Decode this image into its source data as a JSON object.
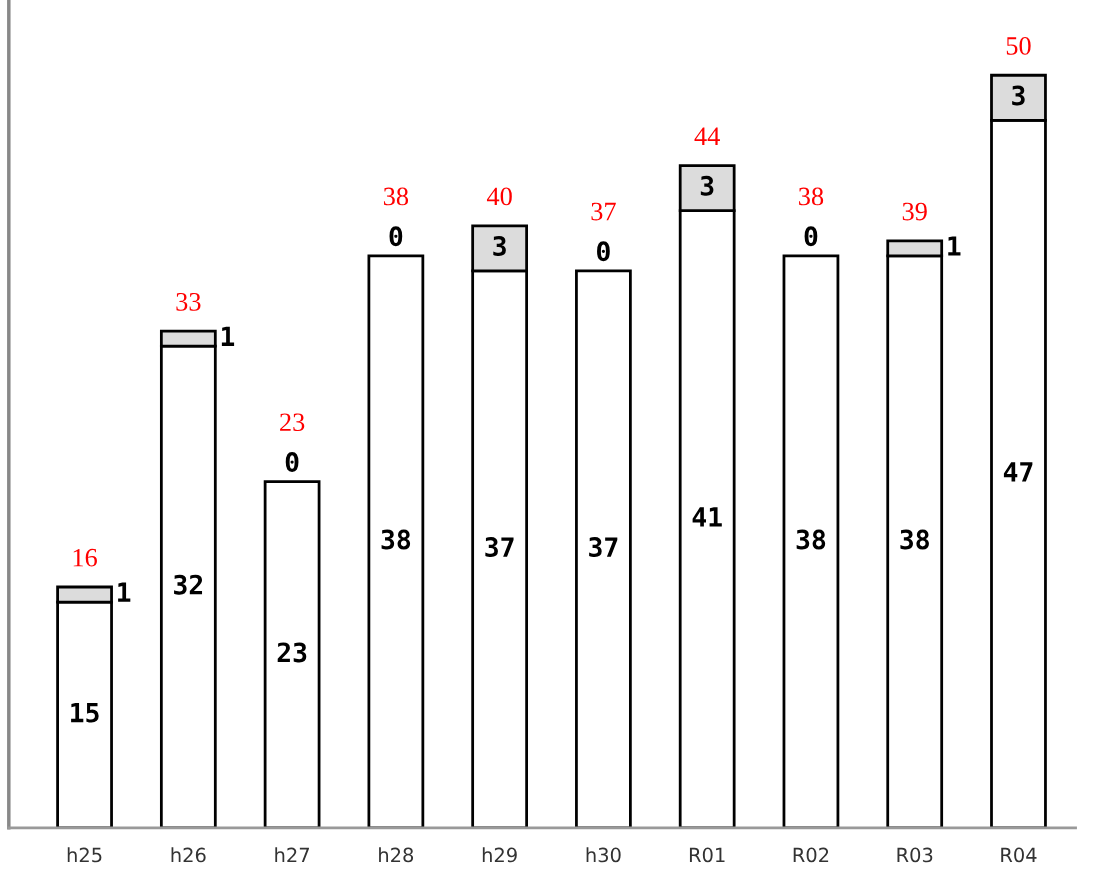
{
  "chart_data": {
    "type": "bar",
    "stacked": true,
    "data_labels": true,
    "legend": false,
    "grid": false,
    "categories": [
      "h25",
      "h26",
      "h27",
      "h28",
      "h29",
      "h30",
      "R01",
      "R02",
      "R03",
      "R04"
    ],
    "series": [
      {
        "color": "#ffffff",
        "values": [
          15,
          32,
          23,
          38,
          37,
          37,
          41,
          38,
          38,
          47
        ]
      },
      {
        "color": "#dcdcdc",
        "values": [
          1,
          1,
          0,
          0,
          3,
          0,
          3,
          0,
          1,
          3
        ]
      }
    ],
    "totals": [
      "16",
      "33",
      "23",
      "38",
      "40",
      "37",
      "44",
      "38",
      "39",
      "50"
    ]
  }
}
